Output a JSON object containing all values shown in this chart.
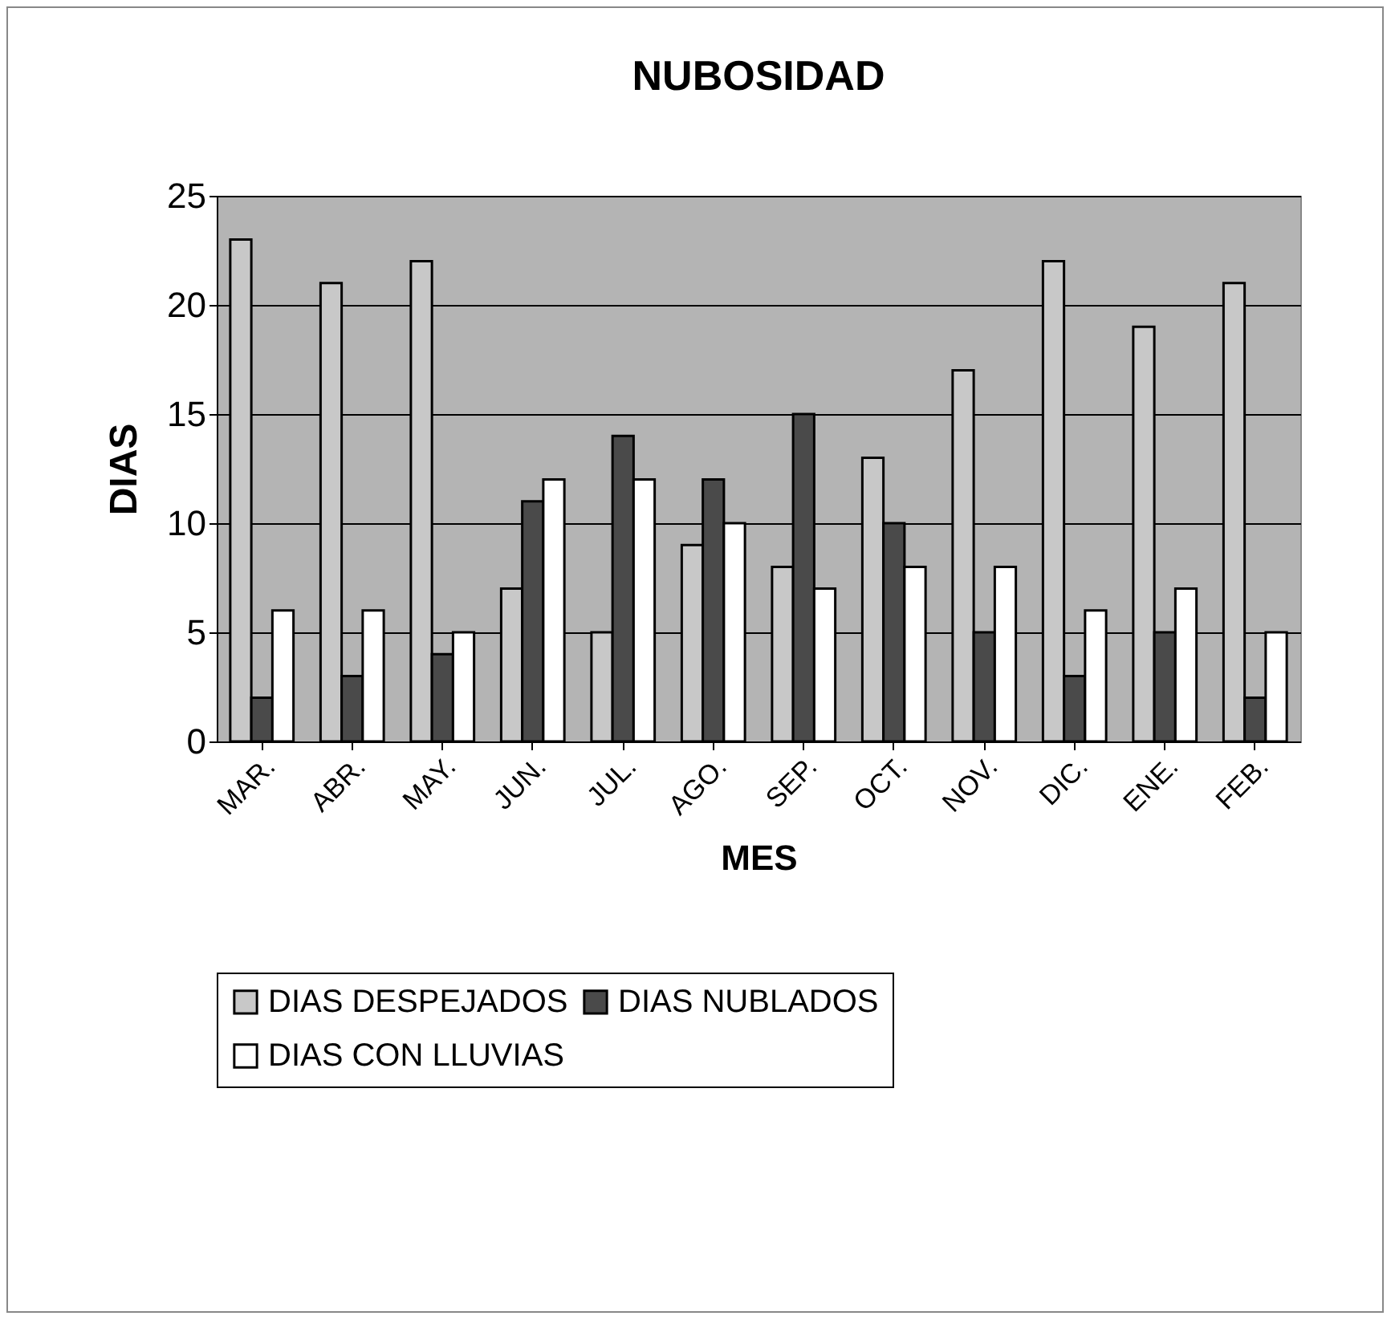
{
  "chart_data": {
    "type": "bar",
    "title": "NUBOSIDAD",
    "xlabel": "MES",
    "ylabel": "DIAS",
    "categories": [
      "MAR.",
      "ABR.",
      "MAY.",
      "JUN.",
      "JUL.",
      "AGO.",
      "SEP.",
      "OCT.",
      "NOV.",
      "DIC.",
      "ENE.",
      "FEB."
    ],
    "series": [
      {
        "name": "DIAS DESPEJADOS",
        "color": "#c8c8c8",
        "values": [
          23,
          21,
          22,
          7,
          5,
          9,
          8,
          13,
          17,
          22,
          19,
          21
        ]
      },
      {
        "name": "DIAS NUBLADOS",
        "color": "#4a4a4a",
        "values": [
          2,
          3,
          4,
          11,
          14,
          12,
          15,
          10,
          5,
          3,
          5,
          2
        ]
      },
      {
        "name": "DIAS CON LLUVIAS",
        "color": "#ffffff",
        "values": [
          6,
          6,
          5,
          12,
          12,
          10,
          7,
          8,
          8,
          6,
          7,
          5
        ]
      }
    ],
    "ylim": [
      0,
      25
    ],
    "yticks": [
      0,
      5,
      10,
      15,
      20,
      25
    ],
    "grid": "y",
    "legend": "bottom"
  }
}
